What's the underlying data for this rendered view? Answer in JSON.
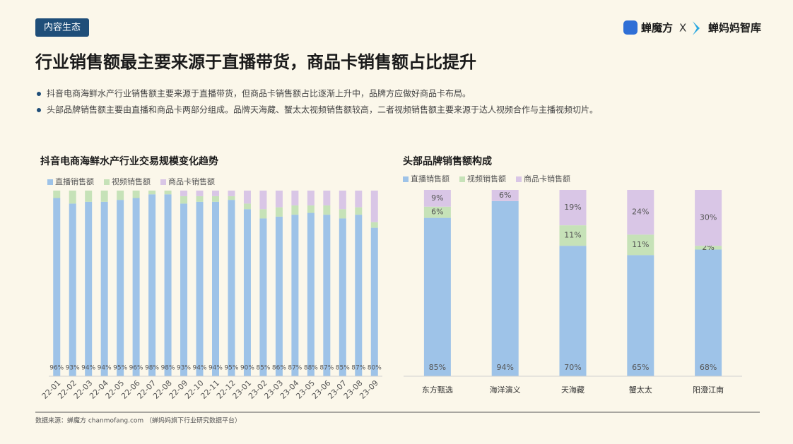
{
  "header": {
    "tag": "内容生态",
    "logo_left": "蝉魔方",
    "logo_sep": "X",
    "logo_right": "蝉妈妈智库"
  },
  "title": "行业销售额最主要来源于直播带货，商品卡销售额占比提升",
  "bullets": [
    "抖音电商海鲜水产行业销售额主要来源于直播带货，但商品卡销售额占比逐渐上升中，品牌方应做好商品卡布局。",
    "头部品牌销售额主要由直播和商品卡两部分组成。品牌天海藏、蟹太太视频销售额较高，二者视频销售额主要来源于达人视频合作与主播视频切片。"
  ],
  "footer": {
    "source": "数据来源：蝉魔方 chanmofang.com （蝉妈妈旗下行业研究数据平台）"
  },
  "chart_data": [
    {
      "type": "stacked_bar",
      "title": "抖音电商海鲜水产行业交易规模变化趋势",
      "categories": [
        "22-01",
        "22-02",
        "22-03",
        "22-04",
        "22-05",
        "22-06",
        "22-07",
        "22-08",
        "22-09",
        "22-10",
        "22-11",
        "22-12",
        "23-01",
        "23-02",
        "23-03",
        "23-04",
        "23-05",
        "23-06",
        "23-07",
        "23-08",
        "23-09"
      ],
      "ylim": [
        0,
        100
      ],
      "series": [
        {
          "name": "直播销售额",
          "color": "#9ec3e8",
          "values": [
            96,
            93,
            94,
            94,
            95,
            96,
            98,
            98,
            93,
            94,
            94,
            95,
            90,
            85,
            86,
            87,
            88,
            87,
            85,
            87,
            80
          ],
          "value_labels": [
            "96%",
            "93%",
            "94%",
            "94%",
            "95%",
            "96%",
            "98%",
            "98%",
            "93%",
            "94%",
            "94%",
            "95%",
            "90%",
            "85%",
            "86%",
            "87%",
            "88%",
            "87%",
            "85%",
            "87%",
            "80%"
          ]
        },
        {
          "name": "视频销售额",
          "color": "#c6e2b8",
          "values": [
            4,
            7,
            6,
            6,
            5,
            4,
            2,
            2,
            4,
            3,
            3,
            2,
            3,
            5,
            5,
            5,
            4,
            5,
            5,
            4,
            3
          ]
        },
        {
          "name": "商品卡销售额",
          "color": "#d9c6e6",
          "values": [
            0,
            0,
            0,
            0,
            0,
            0,
            0,
            0,
            3,
            3,
            3,
            3,
            7,
            10,
            9,
            8,
            8,
            8,
            10,
            9,
            17
          ]
        }
      ]
    },
    {
      "type": "stacked_bar",
      "title": "头部品牌销售额构成",
      "categories": [
        "东方甄选",
        "海洋演义",
        "天海藏",
        "蟹太太",
        "阳澄江南"
      ],
      "ylim": [
        0,
        100
      ],
      "series": [
        {
          "name": "直播销售额",
          "color": "#9ec3e8",
          "values": [
            85,
            94,
            70,
            65,
            68
          ],
          "value_labels": [
            "85%",
            "94%",
            "70%",
            "65%",
            "68%"
          ]
        },
        {
          "name": "视频销售额",
          "color": "#c6e2b8",
          "values": [
            6,
            0,
            11,
            11,
            2
          ],
          "value_labels": [
            "6%",
            null,
            "11%",
            "11%",
            "2%"
          ]
        },
        {
          "name": "商品卡销售额",
          "color": "#d9c6e6",
          "values": [
            9,
            6,
            19,
            24,
            30
          ],
          "value_labels": [
            "9%",
            "6%",
            "19%",
            "24%",
            "30%"
          ]
        }
      ]
    }
  ]
}
